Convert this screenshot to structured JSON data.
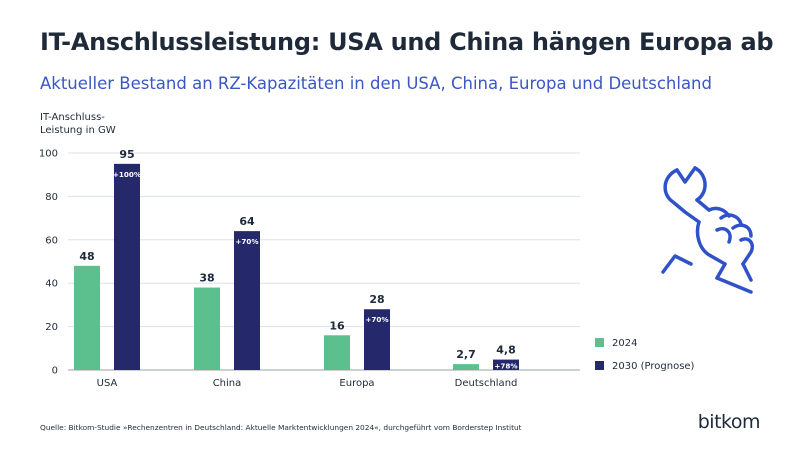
{
  "title": "IT-Anschlussleistung: USA und China hängen Europa ab",
  "subtitle": "Aktueller Bestand an RZ-Kapazitäten in den USA, China, Europa und Deutschland",
  "source": "Quelle: Bitkom-Studie »Rechenzentren in Deutschland: Aktuelle Marktentwicklungen 2024«, durchgeführt vom Borderstep Institut",
  "brand": "bitkom",
  "icon": "wrench-fist-icon",
  "colors": {
    "series_2024": "#5cbf8e",
    "series_2030": "#25296b",
    "grid": "#dde1e6",
    "text": "#1e2a3a",
    "accent": "#3a57c4"
  },
  "chart_data": {
    "type": "bar",
    "ylabel": [
      "IT-Anschluss-",
      "Leistung in GW"
    ],
    "ylim": [
      0,
      100
    ],
    "yticks": [
      0,
      20,
      40,
      60,
      80,
      100
    ],
    "grid": true,
    "legend": "right",
    "categories": [
      "USA",
      "China",
      "Europa",
      "Deutschland"
    ],
    "series": [
      {
        "name": "2024",
        "values": [
          48,
          38,
          16,
          2.7
        ],
        "labels": [
          "48",
          "38",
          "16",
          "2,7"
        ]
      },
      {
        "name": "2030 (Prognose)",
        "values": [
          95,
          64,
          28,
          4.8
        ],
        "labels": [
          "95",
          "64",
          "28",
          "4,8"
        ],
        "growth": [
          "+100%",
          "+70%",
          "+70%",
          "+78%"
        ]
      }
    ]
  }
}
